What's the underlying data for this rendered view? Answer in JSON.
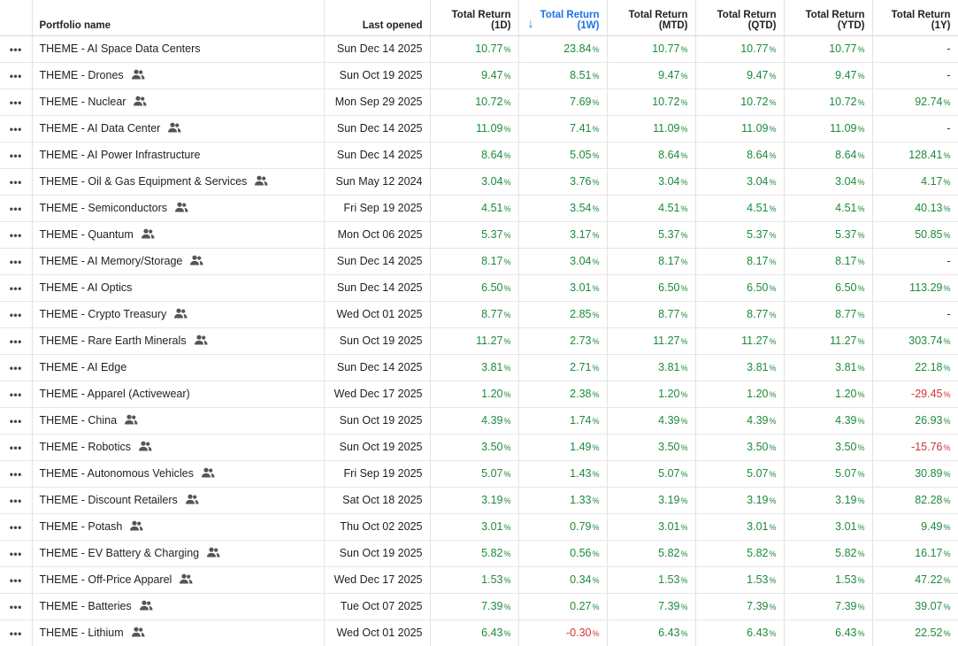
{
  "header": {
    "name": "Portfolio name",
    "last_opened": "Last opened",
    "col_1d": [
      "Total Return",
      "(1D)"
    ],
    "col_1w": [
      "Total Return",
      "(1W)"
    ],
    "col_mtd": [
      "Total Return",
      "(MTD)"
    ],
    "col_qtd": [
      "Total Return",
      "(QTD)"
    ],
    "col_ytd": [
      "Total Return",
      "(YTD)"
    ],
    "col_1y": [
      "Total Return",
      "(1Y)"
    ],
    "sort_arrow": "↓"
  },
  "menu_glyph": "•••",
  "pct_unit": "%",
  "colors": {
    "positive": "#1e8a3a",
    "negative": "#d13438",
    "accent": "#1a73e8"
  },
  "rows": [
    {
      "name": "THEME - AI Space Data Centers",
      "shared": false,
      "date": "Sun Dec 14 2025",
      "d1": "10.77",
      "w1": "23.84",
      "mtd": "10.77",
      "qtd": "10.77",
      "ytd": "10.77",
      "y1": "-"
    },
    {
      "name": "THEME - Drones",
      "shared": true,
      "date": "Sun Oct 19 2025",
      "d1": "9.47",
      "w1": "8.51",
      "mtd": "9.47",
      "qtd": "9.47",
      "ytd": "9.47",
      "y1": "-"
    },
    {
      "name": "THEME - Nuclear",
      "shared": true,
      "date": "Mon Sep 29 2025",
      "d1": "10.72",
      "w1": "7.69",
      "mtd": "10.72",
      "qtd": "10.72",
      "ytd": "10.72",
      "y1": "92.74"
    },
    {
      "name": "THEME - AI Data Center",
      "shared": true,
      "date": "Sun Dec 14 2025",
      "d1": "11.09",
      "w1": "7.41",
      "mtd": "11.09",
      "qtd": "11.09",
      "ytd": "11.09",
      "y1": "-"
    },
    {
      "name": "THEME - AI Power Infrastructure",
      "shared": false,
      "date": "Sun Dec 14 2025",
      "d1": "8.64",
      "w1": "5.05",
      "mtd": "8.64",
      "qtd": "8.64",
      "ytd": "8.64",
      "y1": "128.41"
    },
    {
      "name": "THEME - Oil & Gas Equipment & Services",
      "shared": true,
      "date": "Sun May 12 2024",
      "d1": "3.04",
      "w1": "3.76",
      "mtd": "3.04",
      "qtd": "3.04",
      "ytd": "3.04",
      "y1": "4.17"
    },
    {
      "name": "THEME - Semiconductors",
      "shared": true,
      "date": "Fri Sep 19 2025",
      "d1": "4.51",
      "w1": "3.54",
      "mtd": "4.51",
      "qtd": "4.51",
      "ytd": "4.51",
      "y1": "40.13"
    },
    {
      "name": "THEME - Quantum",
      "shared": true,
      "date": "Mon Oct 06 2025",
      "d1": "5.37",
      "w1": "3.17",
      "mtd": "5.37",
      "qtd": "5.37",
      "ytd": "5.37",
      "y1": "50.85"
    },
    {
      "name": "THEME - AI Memory/Storage",
      "shared": true,
      "date": "Sun Dec 14 2025",
      "d1": "8.17",
      "w1": "3.04",
      "mtd": "8.17",
      "qtd": "8.17",
      "ytd": "8.17",
      "y1": "-"
    },
    {
      "name": "THEME - AI Optics",
      "shared": false,
      "date": "Sun Dec 14 2025",
      "d1": "6.50",
      "w1": "3.01",
      "mtd": "6.50",
      "qtd": "6.50",
      "ytd": "6.50",
      "y1": "113.29"
    },
    {
      "name": "THEME - Crypto Treasury",
      "shared": true,
      "date": "Wed Oct 01 2025",
      "d1": "8.77",
      "w1": "2.85",
      "mtd": "8.77",
      "qtd": "8.77",
      "ytd": "8.77",
      "y1": "-"
    },
    {
      "name": "THEME - Rare Earth Minerals",
      "shared": true,
      "date": "Sun Oct 19 2025",
      "d1": "11.27",
      "w1": "2.73",
      "mtd": "11.27",
      "qtd": "11.27",
      "ytd": "11.27",
      "y1": "303.74"
    },
    {
      "name": "THEME - AI Edge",
      "shared": false,
      "date": "Sun Dec 14 2025",
      "d1": "3.81",
      "w1": "2.71",
      "mtd": "3.81",
      "qtd": "3.81",
      "ytd": "3.81",
      "y1": "22.18"
    },
    {
      "name": "THEME - Apparel (Activewear)",
      "shared": false,
      "date": "Wed Dec 17 2025",
      "d1": "1.20",
      "w1": "2.38",
      "mtd": "1.20",
      "qtd": "1.20",
      "ytd": "1.20",
      "y1": "-29.45"
    },
    {
      "name": "THEME - China",
      "shared": true,
      "date": "Sun Oct 19 2025",
      "d1": "4.39",
      "w1": "1.74",
      "mtd": "4.39",
      "qtd": "4.39",
      "ytd": "4.39",
      "y1": "26.93"
    },
    {
      "name": "THEME - Robotics",
      "shared": true,
      "date": "Sun Oct 19 2025",
      "d1": "3.50",
      "w1": "1.49",
      "mtd": "3.50",
      "qtd": "3.50",
      "ytd": "3.50",
      "y1": "-15.76"
    },
    {
      "name": "THEME - Autonomous Vehicles",
      "shared": true,
      "date": "Fri Sep 19 2025",
      "d1": "5.07",
      "w1": "1.43",
      "mtd": "5.07",
      "qtd": "5.07",
      "ytd": "5.07",
      "y1": "30.89"
    },
    {
      "name": "THEME - Discount Retailers",
      "shared": true,
      "date": "Sat Oct 18 2025",
      "d1": "3.19",
      "w1": "1.33",
      "mtd": "3.19",
      "qtd": "3.19",
      "ytd": "3.19",
      "y1": "82.28"
    },
    {
      "name": "THEME - Potash",
      "shared": true,
      "date": "Thu Oct 02 2025",
      "d1": "3.01",
      "w1": "0.79",
      "mtd": "3.01",
      "qtd": "3.01",
      "ytd": "3.01",
      "y1": "9.49"
    },
    {
      "name": "THEME - EV Battery & Charging",
      "shared": true,
      "date": "Sun Oct 19 2025",
      "d1": "5.82",
      "w1": "0.56",
      "mtd": "5.82",
      "qtd": "5.82",
      "ytd": "5.82",
      "y1": "16.17"
    },
    {
      "name": "THEME - Off-Price Apparel",
      "shared": true,
      "date": "Wed Dec 17 2025",
      "d1": "1.53",
      "w1": "0.34",
      "mtd": "1.53",
      "qtd": "1.53",
      "ytd": "1.53",
      "y1": "47.22"
    },
    {
      "name": "THEME - Batteries",
      "shared": true,
      "date": "Tue Oct 07 2025",
      "d1": "7.39",
      "w1": "0.27",
      "mtd": "7.39",
      "qtd": "7.39",
      "ytd": "7.39",
      "y1": "39.07"
    },
    {
      "name": "THEME - Lithium",
      "shared": true,
      "date": "Wed Oct 01 2025",
      "d1": "6.43",
      "w1": "-0.30",
      "mtd": "6.43",
      "qtd": "6.43",
      "ytd": "6.43",
      "y1": "22.52"
    }
  ]
}
